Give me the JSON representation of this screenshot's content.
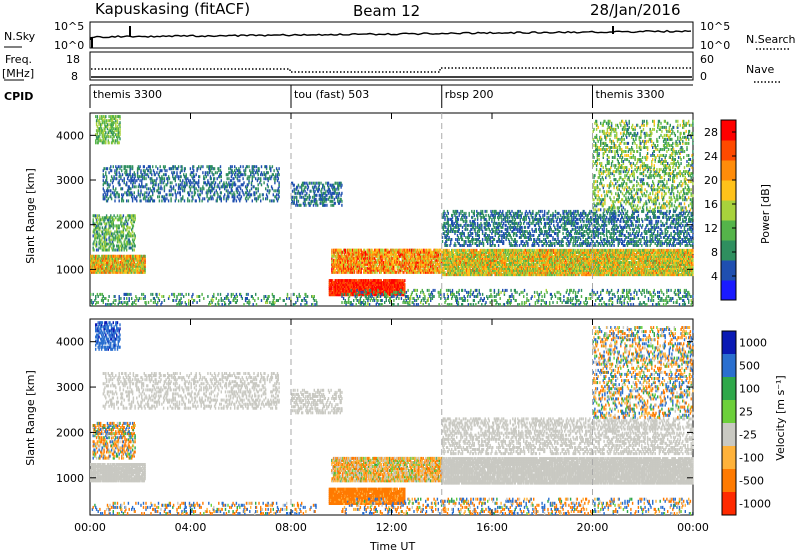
{
  "header": {
    "station": "Kapuskasing (fitACF)",
    "beam": "Beam 12",
    "date": "28/Jan/2016"
  },
  "sky_panel": {
    "label_left": "N.Sky",
    "label_right": "N.Search",
    "yticks": [
      "10^5",
      "10^0"
    ]
  },
  "freq_panel": {
    "label_left_1": "Freq.",
    "label_left_2": "[MHz]",
    "label_right": "Nave",
    "yticks_left": [
      "18",
      "8"
    ],
    "yticks_right": [
      "60",
      "0"
    ]
  },
  "cpid": {
    "label": "CPID",
    "modes": [
      {
        "name": "themis 3300",
        "start_hour": 0
      },
      {
        "name": "tou (fast) 503",
        "start_hour": 8
      },
      {
        "name": "rbsp 200",
        "start_hour": 14
      },
      {
        "name": "themis 3300",
        "start_hour": 20
      }
    ]
  },
  "axes": {
    "ylabel": "Slant Range [km]",
    "xlabel": "Time UT",
    "xticks": [
      "00:00",
      "04:00",
      "08:00",
      "12:00",
      "16:00",
      "20:00",
      "00:00"
    ],
    "yticks": [
      "1000",
      "2000",
      "3000",
      "4000"
    ]
  },
  "power_colorbar": {
    "label": "Power [dB]",
    "ticks": [
      "4",
      "8",
      "12",
      "16",
      "20",
      "24",
      "28"
    ],
    "colors": [
      "#1a1aff",
      "#1f4fb0",
      "#2f8f5f",
      "#55b44a",
      "#a8d23c",
      "#ffc21a",
      "#ff8c0a",
      "#ff4a00",
      "#ff0000"
    ]
  },
  "velocity_colorbar": {
    "label": "Velocity [m s⁻¹]",
    "ticks": [
      "1000",
      "500",
      "100",
      "25",
      "-25",
      "-100",
      "-500",
      "-1000"
    ],
    "colors": [
      "#0a1ab4",
      "#2a6fcf",
      "#2fa84a",
      "#6ccf3a",
      "#c9c9c2",
      "#ffb23a",
      "#ff7a00",
      "#ff2a00"
    ]
  },
  "chart_data": [
    {
      "type": "heatmap",
      "title": "",
      "xlabel": "",
      "ylabel": "Slant Range [km]",
      "xlim": [
        0,
        24
      ],
      "ylim": [
        180,
        4500
      ],
      "colorbar_label": "Power [dB]",
      "colorbar_range": [
        0,
        30
      ],
      "scatter_bands": [
        {
          "t0": 0.0,
          "t1": 2.2,
          "r0": 900,
          "r1": 1300,
          "density": 0.9,
          "vmin": 10,
          "vmax": 26
        },
        {
          "t0": 0.1,
          "t1": 1.8,
          "r0": 1400,
          "r1": 2200,
          "density": 0.4,
          "vmin": 6,
          "vmax": 16
        },
        {
          "t0": 0.2,
          "t1": 1.2,
          "r0": 3800,
          "r1": 4400,
          "density": 0.5,
          "vmin": 8,
          "vmax": 16
        },
        {
          "t0": 0.5,
          "t1": 7.5,
          "r0": 2500,
          "r1": 3300,
          "density": 0.25,
          "vmin": 4,
          "vmax": 9
        },
        {
          "t0": 8.0,
          "t1": 10.0,
          "r0": 2400,
          "r1": 2900,
          "density": 0.35,
          "vmin": 4,
          "vmax": 9
        },
        {
          "t0": 0.0,
          "t1": 9.0,
          "r0": 180,
          "r1": 450,
          "density": 0.18,
          "vmin": 4,
          "vmax": 14
        },
        {
          "t0": 9.5,
          "t1": 12.5,
          "r0": 400,
          "r1": 750,
          "density": 0.95,
          "vmin": 24,
          "vmax": 30
        },
        {
          "t0": 9.6,
          "t1": 14.0,
          "r0": 900,
          "r1": 1400,
          "density": 0.8,
          "vmin": 14,
          "vmax": 28
        },
        {
          "t0": 14.0,
          "t1": 24.0,
          "r0": 850,
          "r1": 1400,
          "density": 0.9,
          "vmin": 10,
          "vmax": 24
        },
        {
          "t0": 14.0,
          "t1": 24.0,
          "r0": 1500,
          "r1": 2300,
          "density": 0.35,
          "vmin": 4,
          "vmax": 10
        },
        {
          "t0": 20.0,
          "t1": 24.0,
          "r0": 2300,
          "r1": 4300,
          "density": 0.25,
          "vmin": 6,
          "vmax": 18
        },
        {
          "t0": 10.0,
          "t1": 24.0,
          "r0": 180,
          "r1": 500,
          "density": 0.2,
          "vmin": 4,
          "vmax": 14
        }
      ]
    },
    {
      "type": "heatmap",
      "title": "",
      "xlabel": "Time UT",
      "ylabel": "Slant Range [km]",
      "xlim": [
        0,
        24
      ],
      "ylim": [
        180,
        4500
      ],
      "colorbar_label": "Velocity [m s⁻¹]",
      "colorbar_range": [
        -1000,
        1000
      ],
      "scatter_bands": [
        {
          "t0": 0.0,
          "t1": 2.2,
          "r0": 900,
          "r1": 1300,
          "density": 0.9,
          "vmin": -20,
          "vmax": 20
        },
        {
          "t0": 0.1,
          "t1": 1.8,
          "r0": 1400,
          "r1": 2200,
          "density": 0.4,
          "vmin": -300,
          "vmax": 200
        },
        {
          "t0": 0.2,
          "t1": 1.2,
          "r0": 3800,
          "r1": 4400,
          "density": 0.5,
          "vmin": 100,
          "vmax": 600
        },
        {
          "t0": 0.5,
          "t1": 7.5,
          "r0": 2500,
          "r1": 3300,
          "density": 0.25,
          "vmin": -20,
          "vmax": 20
        },
        {
          "t0": 8.0,
          "t1": 10.0,
          "r0": 2400,
          "r1": 2900,
          "density": 0.35,
          "vmin": -20,
          "vmax": 20
        },
        {
          "t0": 0.0,
          "t1": 9.0,
          "r0": 180,
          "r1": 450,
          "density": 0.18,
          "vmin": -400,
          "vmax": 400
        },
        {
          "t0": 9.5,
          "t1": 12.5,
          "r0": 400,
          "r1": 750,
          "density": 0.95,
          "vmin": -400,
          "vmax": -60
        },
        {
          "t0": 9.6,
          "t1": 14.0,
          "r0": 900,
          "r1": 1400,
          "density": 0.8,
          "vmin": -150,
          "vmax": 60
        },
        {
          "t0": 14.0,
          "t1": 24.0,
          "r0": 850,
          "r1": 1400,
          "density": 0.9,
          "vmin": -20,
          "vmax": 20
        },
        {
          "t0": 14.0,
          "t1": 24.0,
          "r0": 1500,
          "r1": 2300,
          "density": 0.35,
          "vmin": -20,
          "vmax": 20
        },
        {
          "t0": 20.0,
          "t1": 24.0,
          "r0": 2300,
          "r1": 4300,
          "density": 0.25,
          "vmin": -200,
          "vmax": 200
        },
        {
          "t0": 10.0,
          "t1": 24.0,
          "r0": 180,
          "r1": 500,
          "density": 0.2,
          "vmin": -300,
          "vmax": 300
        }
      ]
    }
  ]
}
